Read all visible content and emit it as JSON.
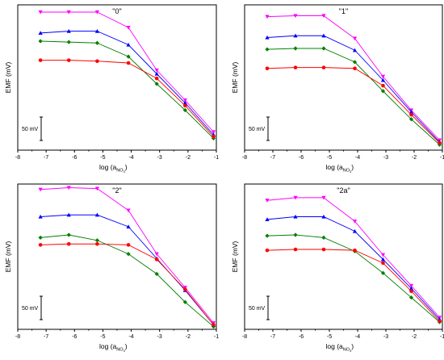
{
  "xlabel_prefix": "log (a",
  "xlabel_sub": "NO",
  "xlabel_subsub": "3",
  "xlabel_suffix": ")",
  "ylabel": "EMF (mV)",
  "scale_label": "50 mV",
  "colors": {
    "red": "#ff0000",
    "green": "#008000",
    "blue": "#0000ff",
    "magenta": "#ff00ff"
  },
  "chart_data": [
    {
      "type": "line",
      "title": "\"0\"",
      "x": [
        -7.2,
        -6.2,
        -5.2,
        -4.1,
        -3.1,
        -2.1,
        -1.1
      ],
      "xlim": [
        -8,
        -1
      ],
      "ylim": [
        0,
        160
      ],
      "xticks": [
        "-8",
        "-7",
        "-6",
        "-5",
        "-4",
        "-3",
        "-2",
        "-1"
      ],
      "series": [
        {
          "color": "magenta",
          "marker": "triangle-down",
          "values": [
            152,
            152,
            152,
            135,
            88,
            55,
            20
          ]
        },
        {
          "color": "blue",
          "marker": "triangle-up",
          "values": [
            129,
            131,
            131,
            116,
            84,
            52,
            17
          ]
        },
        {
          "color": "green",
          "marker": "diamond",
          "values": [
            120,
            119,
            118,
            103,
            73,
            44,
            13
          ]
        },
        {
          "color": "red",
          "marker": "circle",
          "values": [
            99,
            99,
            98,
            96,
            79,
            49,
            15
          ]
        }
      ]
    },
    {
      "type": "line",
      "title": "\"1\"",
      "x": [
        -7.2,
        -6.2,
        -5.2,
        -4.1,
        -3.1,
        -2.1,
        -1.1
      ],
      "xlim": [
        -8,
        -1
      ],
      "ylim": [
        0,
        160
      ],
      "xticks": [
        "-8",
        "-7",
        "-6",
        "-5",
        "-4",
        "-3",
        "-2",
        "-1"
      ],
      "series": [
        {
          "color": "magenta",
          "marker": "triangle-down",
          "values": [
            147,
            148,
            148,
            123,
            81,
            44,
            11
          ]
        },
        {
          "color": "blue",
          "marker": "triangle-up",
          "values": [
            124,
            126,
            126,
            110,
            77,
            42,
            9
          ]
        },
        {
          "color": "green",
          "marker": "diamond",
          "values": [
            111,
            112,
            112,
            97,
            65,
            34,
            6
          ]
        },
        {
          "color": "red",
          "marker": "circle",
          "values": [
            90,
            91,
            91,
            90,
            71,
            39,
            8
          ]
        }
      ]
    },
    {
      "type": "line",
      "title": "\"2\"",
      "x": [
        -7.2,
        -6.2,
        -5.2,
        -4.1,
        -3.1,
        -2.1,
        -1.1
      ],
      "xlim": [
        -8,
        -1
      ],
      "ylim": [
        0,
        160
      ],
      "xticks": [
        "-8",
        "-7",
        "-6",
        "-5",
        "-4",
        "-3",
        "-2",
        "-1"
      ],
      "series": [
        {
          "color": "magenta",
          "marker": "triangle-down",
          "values": [
            154,
            156,
            155,
            131,
            83,
            46,
            7
          ]
        },
        {
          "color": "blue",
          "marker": "triangle-up",
          "values": [
            124,
            126,
            126,
            113,
            78,
            43,
            5
          ]
        },
        {
          "color": "green",
          "marker": "diamond",
          "values": [
            101,
            104,
            98,
            83,
            61,
            30,
            3
          ]
        },
        {
          "color": "red",
          "marker": "circle",
          "values": [
            93,
            94,
            94,
            93,
            77,
            44,
            5
          ]
        }
      ]
    },
    {
      "type": "line",
      "title": "\"2a\"",
      "x": [
        -7.2,
        -6.2,
        -5.2,
        -4.1,
        -3.1,
        -2.1,
        -1.1
      ],
      "xlim": [
        -8,
        -1
      ],
      "ylim": [
        0,
        160
      ],
      "xticks": [
        "-8",
        "-7",
        "-6",
        "-5",
        "-4",
        "-3",
        "-2",
        "-1"
      ],
      "series": [
        {
          "color": "magenta",
          "marker": "triangle-down",
          "values": [
            142,
            145,
            145,
            119,
            82,
            48,
            13
          ]
        },
        {
          "color": "blue",
          "marker": "triangle-up",
          "values": [
            121,
            124,
            124,
            108,
            77,
            45,
            11
          ]
        },
        {
          "color": "green",
          "marker": "diamond",
          "values": [
            103,
            104,
            101,
            86,
            62,
            35,
            8
          ]
        },
        {
          "color": "red",
          "marker": "circle",
          "values": [
            87,
            88,
            88,
            87,
            73,
            42,
            9
          ]
        }
      ]
    }
  ]
}
